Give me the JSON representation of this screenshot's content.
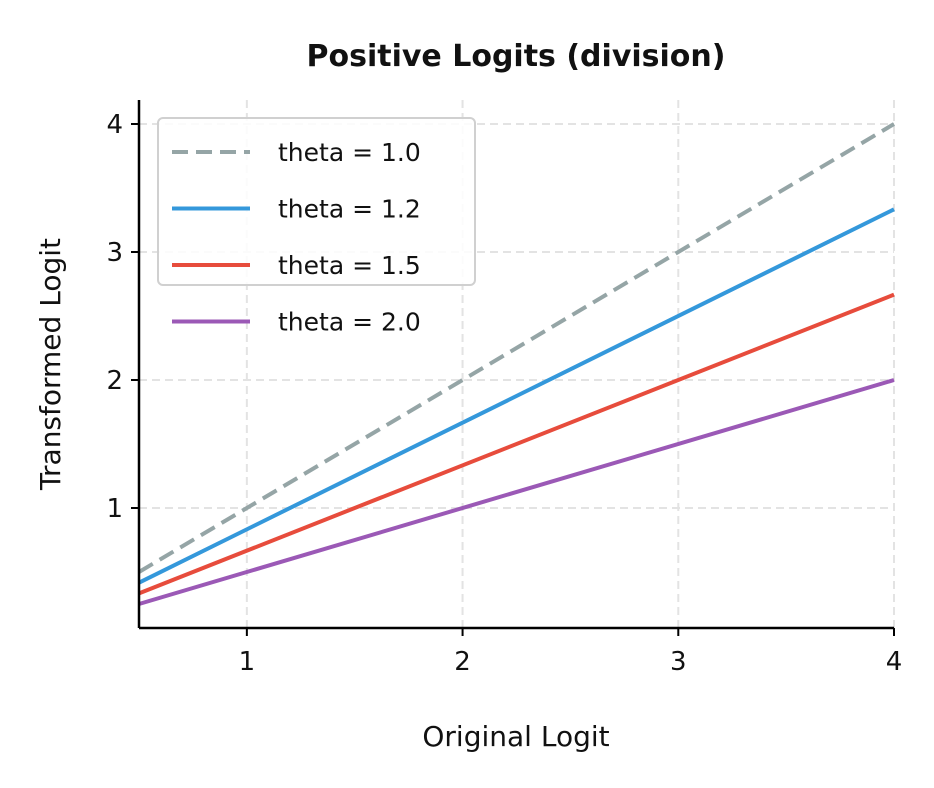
{
  "chart_data": {
    "type": "line",
    "title": "Positive Logits (division)",
    "xlabel": "Original Logit",
    "ylabel": "Transformed Logit",
    "xlim": [
      0.5,
      4
    ],
    "ylim": [
      0.0625,
      4.1875
    ],
    "xticks": [
      1,
      2,
      3,
      4
    ],
    "yticks": [
      1,
      2,
      3,
      4
    ],
    "grid": true,
    "legend_position": "top-left",
    "x": [
      0.5,
      4
    ],
    "series": [
      {
        "name": "theta = 1.0",
        "theta": 1.0,
        "values": [
          0.5,
          4.0
        ],
        "color": "#95a5a6",
        "dashed": true
      },
      {
        "name": "theta = 1.2",
        "theta": 1.2,
        "values": [
          0.4167,
          3.3333
        ],
        "color": "#3498db",
        "dashed": false
      },
      {
        "name": "theta = 1.5",
        "theta": 1.5,
        "values": [
          0.3333,
          2.6667
        ],
        "color": "#e74c3c",
        "dashed": false
      },
      {
        "name": "theta = 2.0",
        "theta": 2.0,
        "values": [
          0.25,
          2.0
        ],
        "color": "#9b59b6",
        "dashed": false
      }
    ]
  }
}
